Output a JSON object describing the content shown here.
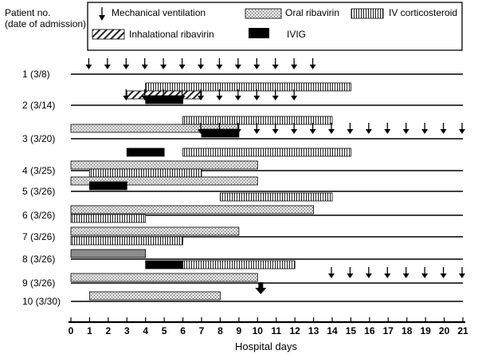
{
  "chart_data": {
    "type": "gantt",
    "y_title": "Patient no. (date of admission)",
    "y_title_lines": [
      "Patient no.",
      "(date of admission)"
    ],
    "xlabel": "Hospital days",
    "x_ticks": [
      "0",
      "1",
      "2",
      "3",
      "4",
      "5",
      "6",
      "7",
      "8",
      "9",
      "10",
      "11",
      "12",
      "13",
      "14",
      "15",
      "16",
      "17",
      "18",
      "19",
      "20",
      "21"
    ],
    "xlim": [
      0,
      21
    ],
    "legend": {
      "placement": "top",
      "items": [
        {
          "key": "vent",
          "label": "Mechanical ventilation"
        },
        {
          "key": "oral",
          "label": "Oral ribavirin"
        },
        {
          "key": "iv",
          "label": "IV corticosteroid"
        },
        {
          "key": "inh",
          "label": "Inhalational ribavirin"
        },
        {
          "key": "ivig",
          "label": "IVIG"
        }
      ]
    },
    "patients": [
      {
        "label": "1 (3/8)",
        "ventilation_days": [
          1,
          2,
          3,
          4,
          5,
          6,
          7,
          8,
          9,
          10,
          11,
          12,
          13
        ],
        "bars": []
      },
      {
        "label": "2 (3/14)",
        "ventilation_days": [
          3,
          4,
          5,
          6,
          7,
          8,
          9,
          10,
          11,
          12
        ],
        "bars": [
          {
            "type": "iv",
            "start": 4,
            "end": 15,
            "level": "upper"
          },
          {
            "type": "inh",
            "start": 3,
            "end": 7,
            "level": "middle"
          },
          {
            "type": "ivig",
            "start": 4,
            "end": 6,
            "level": "lower"
          }
        ]
      },
      {
        "label": "3 (3/20)",
        "ventilation_days": [
          7,
          8,
          9,
          10,
          11,
          12,
          13,
          14,
          15,
          16,
          17,
          18,
          19,
          20,
          21
        ],
        "bars": [
          {
            "type": "iv",
            "start": 6,
            "end": 14,
            "level": "upper"
          },
          {
            "type": "oral",
            "start": 0,
            "end": 9,
            "level": "middle"
          },
          {
            "type": "ivig",
            "start": 7,
            "end": 9,
            "level": "lower"
          }
        ]
      },
      {
        "label": "4 (3/25)",
        "ventilation_days": [],
        "bars": [
          {
            "type": "ivig",
            "start": 3,
            "end": 5,
            "level": "upper"
          },
          {
            "type": "iv",
            "start": 6,
            "end": 15,
            "level": "upper"
          },
          {
            "type": "oral",
            "start": 0,
            "end": 10,
            "level": "lower"
          }
        ]
      },
      {
        "label": "5 (3/26)",
        "ventilation_days": [],
        "bars": [
          {
            "type": "iv",
            "start": 1,
            "end": 7,
            "level": "upper"
          },
          {
            "type": "oral",
            "start": 0,
            "end": 10,
            "level": "middle"
          },
          {
            "type": "ivig",
            "start": 1,
            "end": 3,
            "level": "lower"
          }
        ]
      },
      {
        "label": "6 (3/26)",
        "ventilation_days": [],
        "bars": [
          {
            "type": "iv",
            "start": 8,
            "end": 14,
            "level": "upper"
          },
          {
            "type": "oral",
            "start": 0,
            "end": 13,
            "level": "lower"
          }
        ]
      },
      {
        "label": "7 (3/26)",
        "ventilation_days": [],
        "bars": [
          {
            "type": "iv",
            "start": 0,
            "end": 4,
            "level": "upper"
          },
          {
            "type": "oral",
            "start": 0,
            "end": 9,
            "level": "lower"
          }
        ]
      },
      {
        "label": "8 (3/26)",
        "ventilation_days": [],
        "bars": [
          {
            "type": "iv",
            "start": 0,
            "end": 6,
            "level": "upper"
          },
          {
            "type": "solid_gray",
            "start": 0,
            "end": 4,
            "level": "lower"
          }
        ]
      },
      {
        "label": "9 (3/26)",
        "ventilation_days": [
          14,
          15,
          16,
          17,
          18,
          19,
          20,
          21
        ],
        "bars": [
          {
            "type": "ivig",
            "start": 4,
            "end": 6,
            "level": "upper"
          },
          {
            "type": "iv",
            "start": 6,
            "end": 12,
            "level": "upper"
          },
          {
            "type": "oral",
            "start": 0,
            "end": 10,
            "level": "lower"
          }
        ],
        "end_marker_day": 10
      },
      {
        "label": "10 (3/30)",
        "ventilation_days": [],
        "bars": [
          {
            "type": "oral",
            "start": 1,
            "end": 8,
            "level": "upper"
          }
        ]
      }
    ]
  }
}
